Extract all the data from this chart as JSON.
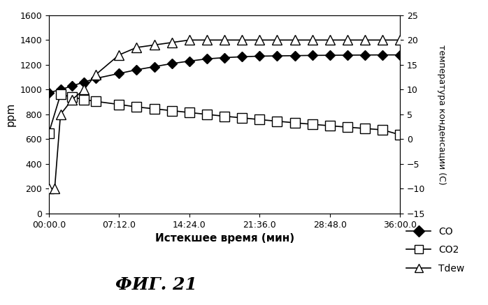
{
  "title": "",
  "xlabel": "Истекшее время (мин)",
  "ylabel_left": "ppm",
  "ylabel_right": "температура конденсации (С)",
  "xlim": [
    0,
    2160
  ],
  "ylim_left": [
    0,
    1600
  ],
  "ylim_right": [
    -15,
    25
  ],
  "fig_caption": "ФИГ. 21",
  "x_ticks_seconds": [
    0,
    432,
    864,
    1296,
    1728,
    2160
  ],
  "x_tick_labels": [
    "00:00.0",
    "07:12.0",
    "14:24.0",
    "21:36.0",
    "28:48.0",
    "36:00.0"
  ],
  "yticks_left": [
    0,
    200,
    400,
    600,
    800,
    1000,
    1200,
    1400,
    1600
  ],
  "yticks_right": [
    -15,
    -10,
    -5,
    0,
    5,
    10,
    15,
    20,
    25
  ],
  "CO_x": [
    0,
    72,
    144,
    216,
    288,
    432,
    540,
    648,
    756,
    864,
    972,
    1080,
    1188,
    1296,
    1404,
    1512,
    1620,
    1728,
    1836,
    1944,
    2052,
    2160
  ],
  "CO_y": [
    975,
    1000,
    1030,
    1060,
    1090,
    1130,
    1160,
    1185,
    1210,
    1230,
    1248,
    1258,
    1265,
    1270,
    1272,
    1274,
    1276,
    1277,
    1278,
    1279,
    1280,
    1280
  ],
  "CO2_x": [
    0,
    72,
    144,
    216,
    288,
    432,
    540,
    648,
    756,
    864,
    972,
    1080,
    1188,
    1296,
    1404,
    1512,
    1620,
    1728,
    1836,
    1944,
    2052,
    2160
  ],
  "CO2_y": [
    650,
    960,
    940,
    920,
    905,
    880,
    860,
    845,
    830,
    815,
    800,
    785,
    772,
    758,
    745,
    732,
    720,
    708,
    697,
    686,
    675,
    635
  ],
  "Tdew_x": [
    0,
    36,
    72,
    144,
    216,
    288,
    432,
    540,
    648,
    756,
    864,
    972,
    1080,
    1188,
    1296,
    1404,
    1512,
    1620,
    1728,
    1836,
    1944,
    2052,
    2160
  ],
  "Tdew_y_celsius": [
    -10,
    -10,
    5,
    8,
    10,
    13,
    17,
    18.5,
    19,
    19.5,
    20,
    20,
    20,
    20,
    20,
    20,
    20,
    20,
    20,
    20,
    20,
    20,
    20
  ],
  "background_color": "#ffffff",
  "legend_CO": "CO",
  "legend_CO2": "CO2",
  "legend_Tdew": "Tdew"
}
